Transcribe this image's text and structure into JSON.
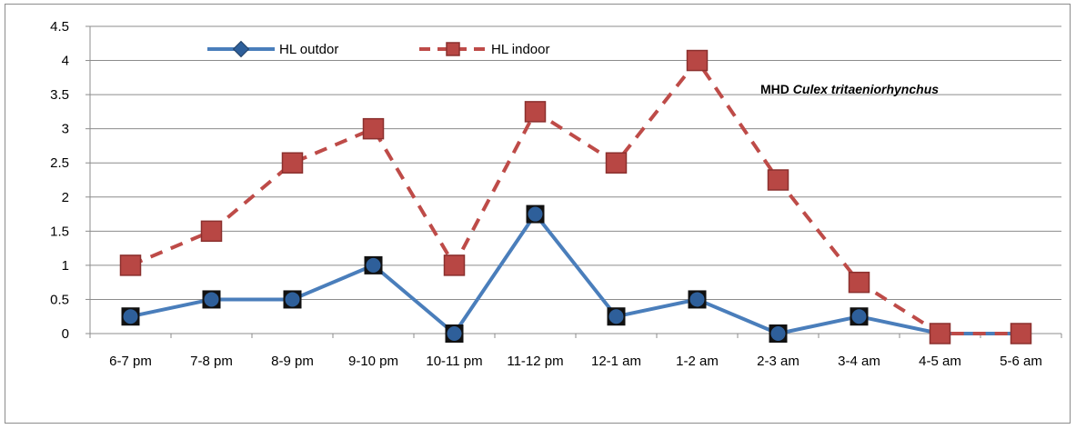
{
  "chart_data": {
    "type": "line",
    "title": "",
    "xlabel": "",
    "ylabel": "",
    "categories": [
      "6-7 pm",
      "7-8 pm",
      "8-9 pm",
      "9-10 pm",
      "10-11 pm",
      "11-12 pm",
      "12-1 am",
      "1-2 am",
      "2-3 am",
      "3-4 am",
      "4-5 am",
      "5-6 am"
    ],
    "ylim": [
      0,
      4.5
    ],
    "yticks": [
      "0",
      "0.5",
      "1",
      "1.5",
      "2",
      "2.5",
      "3",
      "3.5",
      "4",
      "4.5"
    ],
    "grid": true,
    "legend_position": "top-left",
    "series": [
      {
        "name": "HL outdor",
        "values": [
          0.25,
          0.5,
          0.5,
          1,
          0,
          1.75,
          0.25,
          0.5,
          0,
          0.25,
          0,
          0
        ],
        "line_color": "#4a7ebb",
        "marker_color": "#2e5f9a",
        "line_style": "solid",
        "marker": "diamond"
      },
      {
        "name": "HL indoor",
        "values": [
          1,
          1.5,
          2.5,
          3,
          1,
          3.25,
          2.5,
          4,
          2.25,
          0.75,
          0,
          0
        ],
        "line_color": "#be4b48",
        "marker_color": "#a33c3a",
        "line_style": "dashed",
        "marker": "square"
      }
    ],
    "annotation": {
      "prefix": "MHD ",
      "species": "Culex tritaeniorhynchus"
    }
  }
}
